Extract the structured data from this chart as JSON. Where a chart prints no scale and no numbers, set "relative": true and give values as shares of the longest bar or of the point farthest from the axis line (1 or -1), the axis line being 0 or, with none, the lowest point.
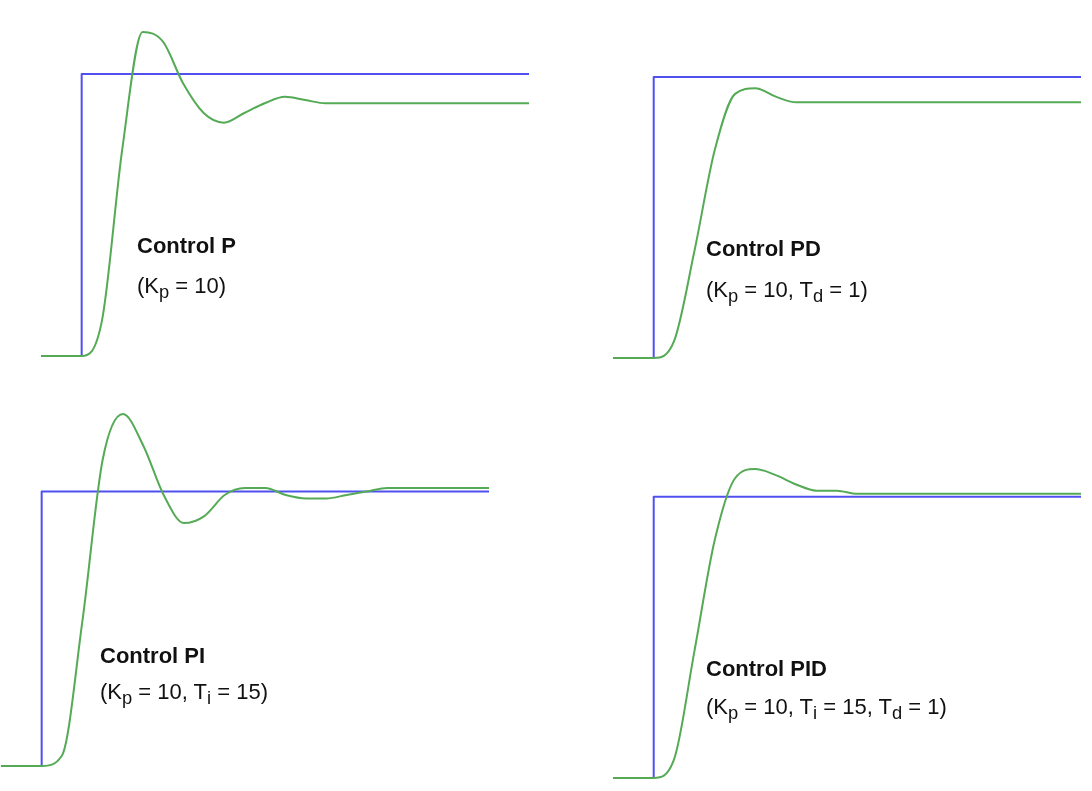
{
  "chart_data": [
    {
      "type": "line",
      "title": "Control P",
      "subtitle": "(K$_{p}$ = 10)",
      "relative": true,
      "marker": "none",
      "categories": [
        null,
        null,
        null,
        null,
        null,
        null,
        null,
        null,
        null,
        null,
        null,
        null,
        null,
        null,
        null,
        null,
        null,
        null,
        null,
        null,
        null,
        null,
        null,
        null,
        null
      ],
      "series": [
        {
          "type": "step",
          "color": "#5050f0",
          "values": [
            0,
            0,
            0,
            0.87,
            0.87,
            0.87,
            0.87,
            0.87,
            0.87,
            0.87,
            0.87,
            0.87,
            0.87,
            0.87,
            0.87,
            0.87,
            0.87,
            0.87,
            0.87,
            0.87,
            0.87,
            0.87,
            0.87,
            0.87,
            0.87
          ]
        },
        {
          "type": "line",
          "color": "#55aa55",
          "values": [
            0,
            0,
            0,
            0.11,
            0.64,
            1,
            0.97,
            0.84,
            0.75,
            0.72,
            0.75,
            0.78,
            0.8,
            0.79,
            0.78,
            0.78,
            0.78,
            0.78,
            0.78,
            0.78,
            0.78,
            0.78,
            0.78,
            0.78,
            0.78
          ]
        }
      ]
    },
    {
      "type": "line",
      "title": "Control PD",
      "subtitle": "(K$_{p}$ = 10, T$_{d}$ = 1)",
      "relative": true,
      "marker": "none",
      "categories": [
        null,
        null,
        null,
        null,
        null,
        null,
        null,
        null,
        null,
        null,
        null,
        null,
        null,
        null,
        null,
        null,
        null,
        null,
        null,
        null,
        null,
        null,
        null,
        null
      ],
      "series": [
        {
          "type": "step",
          "color": "#5050f0",
          "values": [
            0,
            0,
            0,
            1,
            1,
            1,
            1,
            1,
            1,
            1,
            1,
            1,
            1,
            1,
            1,
            1,
            1,
            1,
            1,
            1,
            1,
            1,
            1,
            1
          ]
        },
        {
          "type": "line",
          "color": "#55aa55",
          "values": [
            0,
            0,
            0,
            0.06,
            0.38,
            0.74,
            0.94,
            0.96,
            0.93,
            0.91,
            0.91,
            0.91,
            0.91,
            0.91,
            0.91,
            0.91,
            0.91,
            0.91,
            0.91,
            0.91,
            0.91,
            0.91,
            0.91,
            0.91
          ]
        }
      ]
    },
    {
      "type": "line",
      "title": "Control PI",
      "subtitle": "(K$_{p}$ = 10, T$_{i}$ = 15)",
      "relative": true,
      "marker": "none",
      "categories": [
        null,
        null,
        null,
        null,
        null,
        null,
        null,
        null,
        null,
        null,
        null,
        null,
        null,
        null,
        null,
        null,
        null,
        null,
        null,
        null,
        null,
        null,
        null,
        null,
        null
      ],
      "series": [
        {
          "type": "step",
          "color": "#5050f0",
          "values": [
            0,
            0,
            0,
            0.78,
            0.78,
            0.78,
            0.78,
            0.78,
            0.78,
            0.78,
            0.78,
            0.78,
            0.78,
            0.78,
            0.78,
            0.78,
            0.78,
            0.78,
            0.78,
            0.78,
            0.78,
            0.78,
            0.78,
            0.78,
            0.78
          ]
        },
        {
          "type": "line",
          "color": "#55aa55",
          "values": [
            0,
            0,
            0,
            0.03,
            0.41,
            0.87,
            1,
            0.91,
            0.77,
            0.69,
            0.71,
            0.77,
            0.79,
            0.79,
            0.77,
            0.76,
            0.76,
            0.77,
            0.78,
            0.79,
            0.79,
            0.79,
            0.79,
            0.79,
            0.79
          ]
        }
      ]
    },
    {
      "type": "line",
      "title": "Control PID",
      "subtitle": "(K$_{p}$ = 10, T$_{i}$ = 15, T$_{d}$ = 1)",
      "relative": true,
      "marker": "none",
      "categories": [
        null,
        null,
        null,
        null,
        null,
        null,
        null,
        null,
        null,
        null,
        null,
        null,
        null,
        null,
        null,
        null,
        null,
        null,
        null,
        null,
        null,
        null,
        null,
        null
      ],
      "series": [
        {
          "type": "step",
          "color": "#5050f0",
          "values": [
            0,
            0,
            0,
            0.91,
            0.91,
            0.91,
            0.91,
            0.91,
            0.91,
            0.91,
            0.91,
            0.91,
            0.91,
            0.91,
            0.91,
            0.91,
            0.91,
            0.91,
            0.91,
            0.91,
            0.91,
            0.91,
            0.91,
            0.91
          ]
        },
        {
          "type": "line",
          "color": "#55aa55",
          "values": [
            0,
            0,
            0,
            0.06,
            0.41,
            0.77,
            0.97,
            1,
            0.98,
            0.95,
            0.93,
            0.93,
            0.92,
            0.92,
            0.92,
            0.92,
            0.92,
            0.92,
            0.92,
            0.92,
            0.92,
            0.92,
            0.92,
            0.92
          ]
        }
      ]
    }
  ]
}
